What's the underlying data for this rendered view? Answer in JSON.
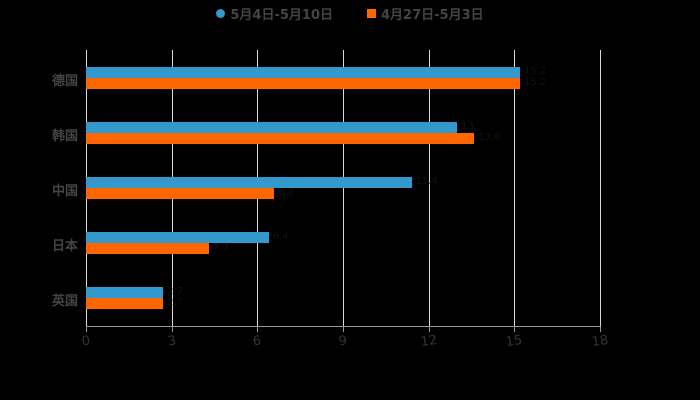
{
  "chart_data": {
    "type": "bar",
    "orientation": "horizontal",
    "title": "",
    "xlabel": "",
    "ylabel": "",
    "categories": [
      "德国",
      "韩国",
      "中国",
      "日本",
      "英国"
    ],
    "series": [
      {
        "name": "5月4日-5月10日",
        "color": "#3399CC",
        "marker": "circle",
        "values": [
          15.2,
          13.0,
          11.4,
          6.4,
          2.7
        ]
      },
      {
        "name": "4月27日-5月3日",
        "color": "#FF6600",
        "marker": "square",
        "values": [
          15.2,
          13.6,
          6.6,
          4.3,
          2.7
        ]
      }
    ],
    "xlim": [
      0,
      18
    ],
    "xticks": [
      "0",
      "3",
      "6",
      "9",
      "12",
      "15",
      "18"
    ],
    "grid": true,
    "legend_position": "top"
  },
  "legend": {
    "series_a": "5月4日-5月10日",
    "series_b": "4月27日-5月3日"
  },
  "colors": {
    "series_a": "#3399CC",
    "series_b": "#FF6600",
    "grid": "#D9D9D9",
    "background": "#000000"
  }
}
